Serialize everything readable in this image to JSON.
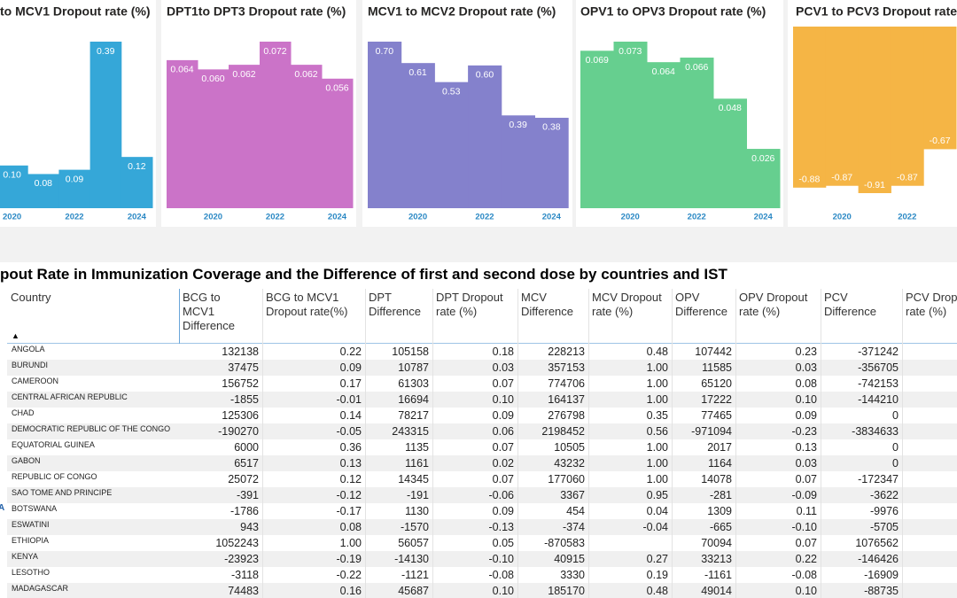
{
  "chart_data": [
    {
      "type": "step-area",
      "title": "to MCV1 Dropout rate (%)",
      "x": [
        2020,
        2021,
        2022,
        2023,
        2024
      ],
      "values": [
        0.1,
        0.08,
        0.09,
        0.39,
        0.12
      ],
      "value_labels": [
        "0.10",
        "0.08",
        "0.09",
        "0.39",
        "0.12"
      ],
      "color": "#35a7d8",
      "xticks": [
        2020,
        2022,
        2024
      ]
    },
    {
      "type": "step-area",
      "title": "DPT1to DPT3 Dropout rate (%)",
      "x": [
        2019,
        2020,
        2021,
        2022,
        2023,
        2024
      ],
      "values": [
        0.064,
        0.06,
        0.062,
        0.072,
        0.062,
        0.056
      ],
      "value_labels": [
        "0.064",
        "0.060",
        "0.062",
        "0.072",
        "0.062",
        "0.056"
      ],
      "color": "#cb73c8",
      "xticks": [
        2020,
        2022,
        2024
      ]
    },
    {
      "type": "step-area",
      "title": "MCV1 to MCV2 Dropout rate (%)",
      "x": [
        2019,
        2020,
        2021,
        2022,
        2023,
        2024
      ],
      "values": [
        0.7,
        0.61,
        0.53,
        0.6,
        0.39,
        0.38
      ],
      "value_labels": [
        "0.70",
        "0.61",
        "0.53",
        "0.60",
        "0.39",
        "0.38"
      ],
      "color": "#8481cc",
      "xticks": [
        2020,
        2022,
        2024
      ]
    },
    {
      "type": "step-area",
      "title": "OPV1 to OPV3 Dropout rate (%)",
      "x": [
        2019,
        2020,
        2021,
        2022,
        2023,
        2024
      ],
      "values": [
        0.069,
        0.073,
        0.064,
        0.066,
        0.048,
        0.026
      ],
      "value_labels": [
        "0.069",
        "0.073",
        "0.064",
        "0.066",
        "0.048",
        "0.026"
      ],
      "color": "#66cf8f",
      "xticks": [
        2020,
        2022,
        2024
      ]
    },
    {
      "type": "step-area",
      "title": "PCV1 to PCV3 Dropout rate",
      "x": [
        2019,
        2020,
        2021,
        2022,
        2023
      ],
      "values": [
        -0.88,
        -0.87,
        -0.91,
        -0.87,
        -0.67
      ],
      "color": "#f5b545",
      "xticks": [
        2020,
        2022
      ]
    }
  ],
  "table": {
    "title": "pout Rate in Immunization Coverage and the Difference of first and second dose by countries and IST",
    "group_label": "A",
    "columns": [
      "Country",
      "BCG to MCV1 Difference",
      "BCG to MCV1 Dropout rate(%)",
      "DPT Difference",
      "DPT Dropout rate (%)",
      "MCV Difference",
      "MCV Dropout rate (%)",
      "OPV Difference",
      "OPV Dropout rate (%)",
      "PCV Difference",
      "PCV Dropout rate (%)"
    ],
    "rows": [
      [
        "ANGOLA",
        "132138",
        "0.22",
        "105158",
        "0.18",
        "228213",
        "0.48",
        "107442",
        "0.23",
        "-371242"
      ],
      [
        "BURUNDI",
        "37475",
        "0.09",
        "10787",
        "0.03",
        "357153",
        "1.00",
        "11585",
        "0.03",
        "-356705"
      ],
      [
        "CAMEROON",
        "156752",
        "0.17",
        "61303",
        "0.07",
        "774706",
        "1.00",
        "65120",
        "0.08",
        "-742153"
      ],
      [
        "CENTRAL AFRICAN REPUBLIC",
        "-1855",
        "-0.01",
        "16694",
        "0.10",
        "164137",
        "1.00",
        "17222",
        "0.10",
        "-144210"
      ],
      [
        "CHAD",
        "125306",
        "0.14",
        "78217",
        "0.09",
        "276798",
        "0.35",
        "77465",
        "0.09",
        "0"
      ],
      [
        "DEMOCRATIC REPUBLIC OF THE CONGO",
        "-190270",
        "-0.05",
        "243315",
        "0.06",
        "2198452",
        "0.56",
        "-971094",
        "-0.23",
        "-3834633"
      ],
      [
        "EQUATORIAL GUINEA",
        "6000",
        "0.36",
        "1135",
        "0.07",
        "10505",
        "1.00",
        "2017",
        "0.13",
        "0"
      ],
      [
        "GABON",
        "6517",
        "0.13",
        "1161",
        "0.02",
        "43232",
        "1.00",
        "1164",
        "0.03",
        "0"
      ],
      [
        "REPUBLIC OF CONGO",
        "25072",
        "0.12",
        "14345",
        "0.07",
        "177060",
        "1.00",
        "14078",
        "0.07",
        "-172347"
      ],
      [
        "SAO TOME AND PRINCIPE",
        "-391",
        "-0.12",
        "-191",
        "-0.06",
        "3367",
        "0.95",
        "-281",
        "-0.09",
        "-3622"
      ],
      [
        "BOTSWANA",
        "-1786",
        "-0.17",
        "1130",
        "0.09",
        "454",
        "0.04",
        "1309",
        "0.11",
        "-9976"
      ],
      [
        "ESWATINI",
        "943",
        "0.08",
        "-1570",
        "-0.13",
        "-374",
        "-0.04",
        "-665",
        "-0.10",
        "-5705"
      ],
      [
        "ETHIOPIA",
        "1052243",
        "1.00",
        "56057",
        "0.05",
        "-870583",
        null,
        "70094",
        "0.07",
        "1076562"
      ],
      [
        "KENYA",
        "-23923",
        "-0.19",
        "-14130",
        "-0.10",
        "40915",
        "0.27",
        "33213",
        "0.22",
        "-146426"
      ],
      [
        "LESOTHO",
        "-3118",
        "-0.22",
        "-1121",
        "-0.08",
        "3330",
        "0.19",
        "-1161",
        "-0.08",
        "-16909"
      ],
      [
        "MADAGASCAR",
        "74483",
        "0.16",
        "45687",
        "0.10",
        "185170",
        "0.48",
        "49014",
        "0.10",
        "-88735"
      ]
    ]
  }
}
